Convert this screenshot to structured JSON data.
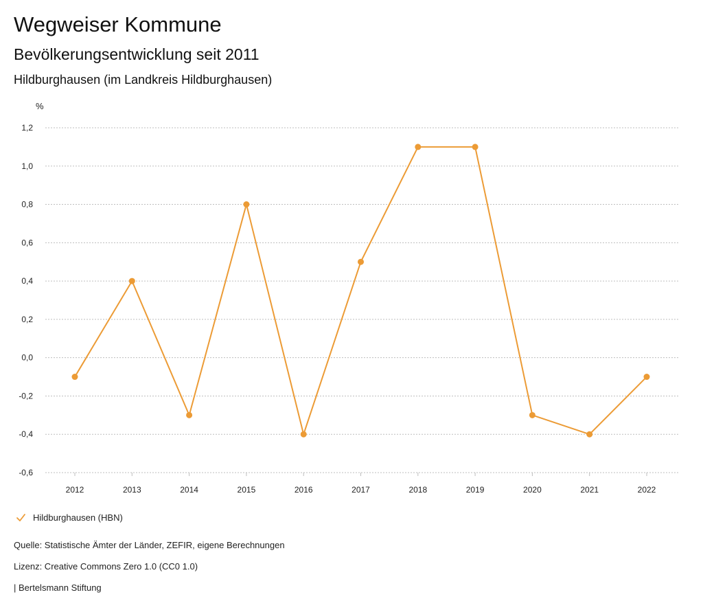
{
  "header": {
    "title": "Wegweiser Kommune",
    "subtitle": "Bevölkerungsentwicklung seit 2011",
    "region": "Hildburghausen (im Landkreis Hildburghausen)"
  },
  "colors": {
    "series": "#ec9b35",
    "grid": "#bdbdbd",
    "axis_text": "#222222"
  },
  "chart_data": {
    "type": "line",
    "title": "Bevölkerungsentwicklung seit 2011",
    "ylabel": "%",
    "xlabel": "",
    "ylim": [
      -0.6,
      1.2
    ],
    "yticks": [
      1.2,
      1.0,
      0.8,
      0.6,
      0.4,
      0.2,
      0.0,
      -0.2,
      -0.4,
      -0.6
    ],
    "ytick_labels": [
      "1,2",
      "1,0",
      "0,8",
      "0,6",
      "0,4",
      "0,2",
      "0,0",
      "-0,2",
      "-0,4",
      "-0,6"
    ],
    "grid": true,
    "categories": [
      "2012",
      "2013",
      "2014",
      "2015",
      "2016",
      "2017",
      "2018",
      "2019",
      "2020",
      "2021",
      "2022"
    ],
    "series": [
      {
        "name": "Hildburghausen (HBN)",
        "values": [
          -0.1,
          0.4,
          -0.3,
          0.8,
          -0.4,
          0.5,
          1.1,
          1.1,
          -0.3,
          -0.4,
          -0.1
        ]
      }
    ],
    "legend_position": "bottom-left"
  },
  "footer": {
    "source": "Quelle: Statistische Ämter der Länder, ZEFIR, eigene Berechnungen",
    "license": "Lizenz: Creative Commons Zero 1.0 (CC0 1.0)",
    "brand": "| Bertelsmann Stiftung"
  }
}
